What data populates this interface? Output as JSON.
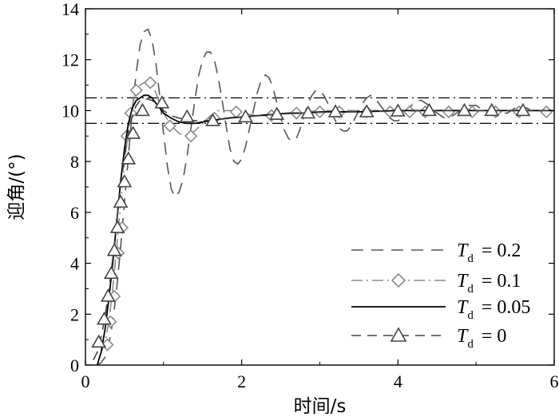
{
  "chart_data": {
    "type": "line",
    "xlabel": "时间/s",
    "ylabel": "迎角/(°)",
    "xlim": [
      0,
      6
    ],
    "ylim": [
      0,
      14
    ],
    "x_ticks": [
      0,
      2,
      4,
      6
    ],
    "y_ticks": [
      0,
      2,
      4,
      6,
      8,
      10,
      12,
      14
    ],
    "x_tick_labels": [
      "0",
      "2",
      "4",
      "6"
    ],
    "y_tick_labels": [
      "0",
      "2",
      "4",
      "6",
      "8",
      "10",
      "12",
      "14"
    ],
    "grid": false,
    "legend_position": "bottom-right",
    "reference_lines": [
      {
        "y": 10.5,
        "style": "dash-dot"
      },
      {
        "y": 9.5,
        "style": "dash-dot"
      }
    ],
    "series": [
      {
        "name": "T_d = 0.2",
        "legend_main": "T",
        "legend_sub": "d",
        "legend_value": "= 0.2",
        "style": "long-dash",
        "color": "#555555",
        "marker": "none",
        "x": [
          0.15,
          0.2,
          0.25,
          0.3,
          0.35,
          0.4,
          0.45,
          0.5,
          0.55,
          0.6,
          0.65,
          0.7,
          0.75,
          0.8,
          0.85,
          0.9,
          0.95,
          1.0,
          1.05,
          1.1,
          1.15,
          1.2,
          1.25,
          1.3,
          1.35,
          1.4,
          1.45,
          1.5,
          1.55,
          1.6,
          1.65,
          1.7,
          1.75,
          1.8,
          1.85,
          1.9,
          1.95,
          2.0,
          2.05,
          2.1,
          2.15,
          2.2,
          2.25,
          2.3,
          2.35,
          2.4,
          2.45,
          2.5,
          2.55,
          2.6,
          2.65,
          2.7,
          2.75,
          2.8,
          2.85,
          2.9,
          2.95,
          3.0,
          3.05,
          3.1,
          3.15,
          3.2,
          3.25,
          3.3,
          3.35,
          3.4,
          3.45,
          3.5,
          3.55,
          3.6,
          3.65,
          3.7,
          3.75,
          3.8,
          3.85,
          3.9,
          3.95,
          4.0,
          4.05,
          4.1,
          4.15,
          4.2,
          4.25,
          4.3,
          4.35,
          4.4,
          4.45,
          4.5,
          4.55,
          4.6,
          4.65,
          4.7,
          4.75,
          4.8,
          4.85,
          4.9,
          4.95,
          5.0,
          5.05,
          5.1,
          5.15,
          5.2,
          5.25,
          5.3,
          5.35,
          5.4,
          5.45,
          5.5,
          5.55,
          5.6,
          5.65,
          5.7,
          5.75,
          5.8,
          5.85,
          5.9,
          5.95,
          6.0
        ],
        "y": [
          0,
          0.1,
          0.3,
          0.8,
          1.7,
          3.0,
          4.6,
          6.4,
          8.2,
          10.0,
          11.5,
          12.6,
          13.1,
          13.2,
          12.8,
          11.9,
          10.6,
          9.1,
          7.8,
          6.9,
          6.6,
          6.8,
          7.3,
          8.2,
          9.3,
          10.4,
          11.4,
          12.0,
          12.3,
          12.3,
          12.0,
          11.3,
          10.4,
          9.4,
          8.5,
          8.0,
          7.9,
          8.1,
          8.6,
          9.3,
          10.0,
          10.7,
          11.2,
          11.4,
          11.3,
          10.9,
          10.3,
          9.7,
          9.2,
          8.9,
          8.8,
          8.9,
          9.3,
          9.8,
          10.3,
          10.6,
          10.8,
          10.8,
          10.6,
          10.3,
          9.9,
          9.6,
          9.3,
          9.2,
          9.2,
          9.4,
          9.7,
          10.0,
          10.3,
          10.5,
          10.6,
          10.5,
          10.3,
          10.1,
          9.9,
          9.7,
          9.6,
          9.6,
          9.7,
          9.9,
          10.1,
          10.3,
          10.4,
          10.4,
          10.3,
          10.2,
          10.0,
          9.9,
          9.8,
          9.7,
          9.7,
          9.8,
          9.9,
          10.0,
          10.1,
          10.2,
          10.2,
          10.2,
          10.1,
          10.0,
          9.9,
          9.9,
          9.8,
          9.8,
          9.9,
          9.9,
          10.0,
          10.1,
          10.1,
          10.1,
          10.1,
          10.0,
          10.0,
          9.9,
          9.9,
          9.9,
          10.0,
          10.0
        ]
      },
      {
        "name": "T_d = 0.1",
        "legend_main": "T",
        "legend_sub": "d",
        "legend_value": "= 0.1",
        "style": "dash-dot",
        "color": "#8a8a8a",
        "marker": "diamond",
        "x": [
          0.2,
          0.25,
          0.3,
          0.35,
          0.4,
          0.45,
          0.5,
          0.55,
          0.6,
          0.65,
          0.7,
          0.75,
          0.8,
          0.85,
          0.9,
          0.95,
          1.0,
          1.1,
          1.2,
          1.3,
          1.4,
          1.5,
          1.6,
          1.7,
          1.8,
          1.9,
          2.0,
          2.2,
          2.4,
          2.6,
          2.8,
          3.0,
          3.4,
          3.8,
          4.2,
          4.6,
          5.0,
          5.4,
          5.8,
          6.0
        ],
        "y": [
          0.5,
          0.9,
          1.7,
          3.0,
          4.6,
          6.3,
          7.9,
          9.2,
          10.2,
          10.8,
          11.0,
          11.1,
          11.1,
          11.0,
          10.7,
          10.3,
          9.9,
          9.4,
          9.1,
          9.0,
          9.2,
          9.5,
          9.8,
          10.0,
          10.0,
          10.0,
          9.9,
          9.8,
          9.8,
          9.9,
          9.95,
          10.0,
          10.0,
          10.0,
          10.0,
          10.0,
          10.0,
          10.0,
          10.0,
          10.0
        ],
        "marker_points": [
          [
            0.28,
            0.8
          ],
          [
            0.32,
            1.7
          ],
          [
            0.37,
            2.7
          ],
          [
            0.42,
            4.4
          ],
          [
            0.47,
            5.4
          ],
          [
            0.53,
            9.0
          ],
          [
            0.58,
            9.9
          ],
          [
            0.65,
            10.8
          ],
          [
            0.83,
            11.1
          ],
          [
            1.08,
            9.4
          ],
          [
            1.35,
            9.0
          ],
          [
            1.65,
            9.7
          ],
          [
            1.93,
            9.95
          ],
          [
            2.38,
            9.8
          ],
          [
            2.7,
            9.9
          ],
          [
            3.0,
            9.95
          ],
          [
            3.25,
            9.95
          ],
          [
            3.6,
            9.95
          ],
          [
            3.9,
            9.95
          ],
          [
            4.15,
            9.95
          ],
          [
            4.35,
            9.95
          ],
          [
            4.65,
            9.95
          ],
          [
            4.95,
            9.95
          ],
          [
            5.25,
            9.95
          ],
          [
            5.55,
            9.95
          ],
          [
            5.9,
            9.95
          ]
        ]
      },
      {
        "name": "T_d = 0.05",
        "legend_main": "T",
        "legend_sub": "d",
        "legend_value": "= 0.05",
        "style": "solid",
        "color": "#000000",
        "marker": "none",
        "x": [
          0.15,
          0.2,
          0.25,
          0.3,
          0.35,
          0.4,
          0.45,
          0.5,
          0.55,
          0.6,
          0.65,
          0.7,
          0.75,
          0.8,
          0.85,
          0.9,
          0.95,
          1.0,
          1.1,
          1.2,
          1.3,
          1.4,
          1.5,
          1.6,
          1.7,
          1.8,
          2.0,
          2.2,
          2.4,
          2.6,
          2.8,
          3.0,
          3.5,
          4.0,
          4.5,
          5.0,
          5.5,
          6.0
        ],
        "y": [
          0,
          0.5,
          1.4,
          2.6,
          4.0,
          5.6,
          7.2,
          8.5,
          9.5,
          10.1,
          10.4,
          10.5,
          10.6,
          10.6,
          10.5,
          10.3,
          10.1,
          9.9,
          9.7,
          9.55,
          9.5,
          9.5,
          9.55,
          9.6,
          9.65,
          9.7,
          9.75,
          9.8,
          9.85,
          9.9,
          9.9,
          9.95,
          9.95,
          10.0,
          10.0,
          10.0,
          10.0,
          10.0
        ]
      },
      {
        "name": "T_d = 0",
        "legend_main": "T",
        "legend_sub": "d",
        "legend_value": "= 0",
        "style": "dash",
        "color": "#444444",
        "marker": "triangle",
        "x": [
          0.1,
          0.15,
          0.2,
          0.25,
          0.3,
          0.35,
          0.4,
          0.45,
          0.5,
          0.55,
          0.6,
          0.65,
          0.7,
          0.75,
          0.8,
          0.85,
          0.9,
          0.95,
          1.0,
          1.1,
          1.2,
          1.3,
          1.4,
          1.5,
          1.6,
          1.8,
          2.0,
          2.2,
          2.4,
          2.6,
          2.8,
          3.0,
          3.5,
          4.0,
          4.5,
          5.0,
          5.5,
          6.0
        ],
        "y": [
          0.2,
          0.5,
          1.1,
          1.9,
          2.9,
          4.2,
          5.6,
          7.0,
          8.2,
          9.1,
          9.8,
          10.2,
          10.4,
          10.45,
          10.45,
          10.4,
          10.3,
          10.2,
          10.0,
          9.8,
          9.7,
          9.65,
          9.6,
          9.6,
          9.62,
          9.68,
          9.74,
          9.8,
          9.85,
          9.88,
          9.9,
          9.93,
          9.96,
          9.98,
          10.0,
          10.0,
          10.0,
          10.0
        ],
        "marker_points": [
          [
            0.17,
            0.9
          ],
          [
            0.24,
            1.8
          ],
          [
            0.29,
            2.7
          ],
          [
            0.33,
            3.6
          ],
          [
            0.37,
            4.5
          ],
          [
            0.41,
            5.4
          ],
          [
            0.45,
            6.4
          ],
          [
            0.5,
            7.2
          ],
          [
            0.55,
            8.1
          ],
          [
            0.61,
            9.1
          ],
          [
            0.73,
            10.0
          ],
          [
            0.98,
            10.3
          ],
          [
            1.3,
            9.75
          ],
          [
            1.63,
            9.6
          ],
          [
            2.05,
            9.75
          ],
          [
            2.45,
            9.85
          ],
          [
            2.85,
            9.9
          ],
          [
            3.2,
            9.95
          ],
          [
            3.6,
            9.95
          ],
          [
            4.0,
            9.98
          ],
          [
            4.4,
            10.0
          ],
          [
            4.85,
            10.0
          ],
          [
            5.2,
            10.0
          ],
          [
            5.6,
            10.0
          ]
        ]
      }
    ]
  }
}
